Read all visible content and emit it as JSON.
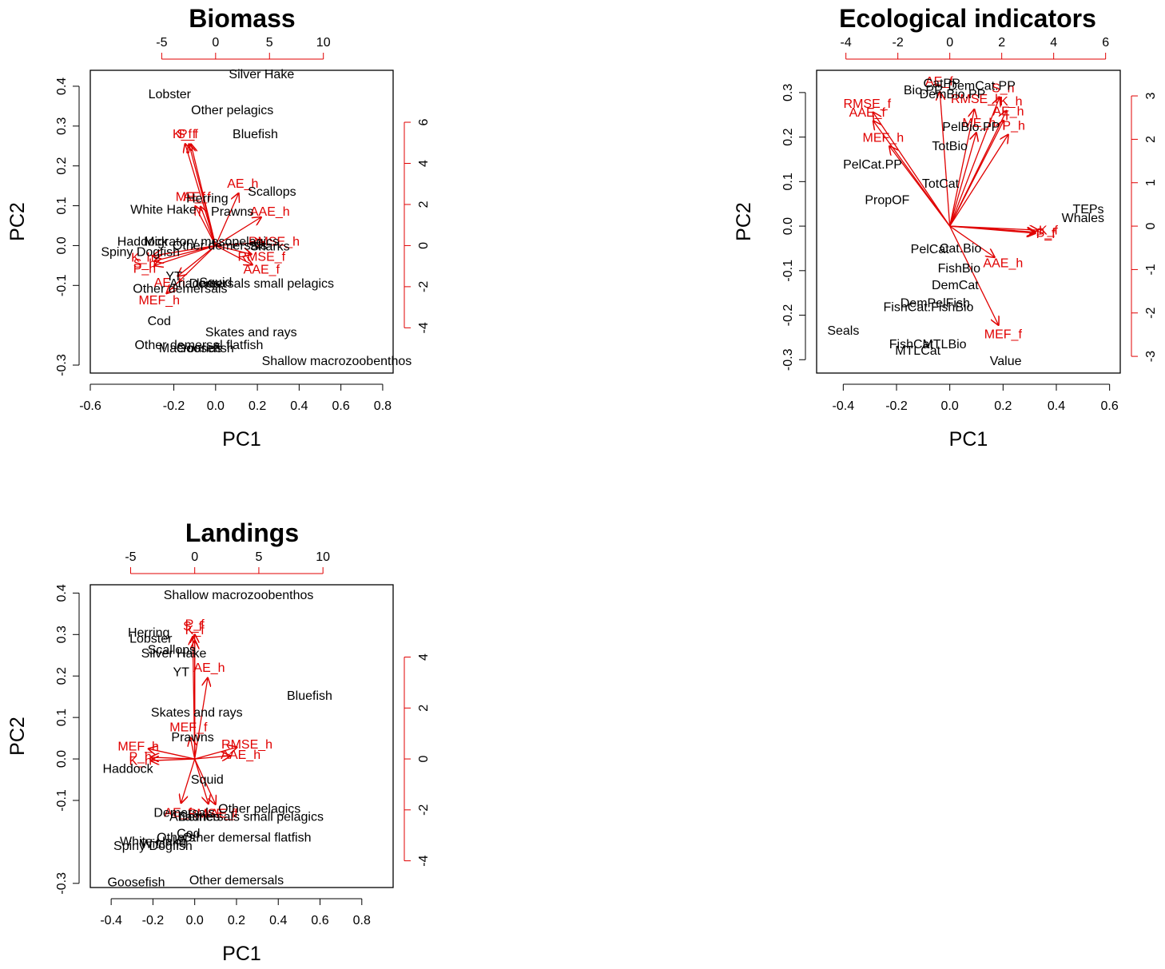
{
  "colors": {
    "points": "#000000",
    "arrows": "#e00000",
    "secondary_axis": "#e00000"
  },
  "chart_data": [
    {
      "type": "scatter",
      "subtype": "biplot",
      "title": "Biomass",
      "xlabel": "PC1",
      "ylabel": "PC2",
      "xlim": [
        -0.6,
        0.85
      ],
      "ylim": [
        -0.32,
        0.44
      ],
      "xticks": [
        "-0.6",
        "-0.2",
        "0.0",
        "0.2",
        "0.4",
        "0.6",
        "0.8"
      ],
      "yticks": [
        "-0.3",
        "-0.1",
        "0.0",
        "0.1",
        "0.2",
        "0.3",
        "0.4"
      ],
      "xticks_top": [
        "-5",
        "0",
        "5",
        "10"
      ],
      "yticks_right": [
        "-4",
        "-2",
        "0",
        "2",
        "4",
        "6"
      ],
      "loading_scale": 0.0516,
      "points": [
        {
          "label": "Silver Hake",
          "x": 0.22,
          "y": 0.43
        },
        {
          "label": "Lobster",
          "x": -0.22,
          "y": 0.38
        },
        {
          "label": "Other pelagics",
          "x": 0.08,
          "y": 0.34
        },
        {
          "label": "Bluefish",
          "x": 0.19,
          "y": 0.28
        },
        {
          "label": "Scallops",
          "x": 0.27,
          "y": 0.135
        },
        {
          "label": "Herring",
          "x": -0.04,
          "y": 0.118
        },
        {
          "label": "White Hake",
          "x": -0.25,
          "y": 0.09
        },
        {
          "label": "Prawns",
          "x": 0.08,
          "y": 0.085
        },
        {
          "label": "Haddock",
          "x": -0.35,
          "y": 0.01
        },
        {
          "label": "Migratory mesopelagics",
          "x": -0.02,
          "y": 0.01
        },
        {
          "label": "Other demersals",
          "x": 0.02,
          "y": 0.0
        },
        {
          "label": "Sharks",
          "x": 0.26,
          "y": -0.002
        },
        {
          "label": "Spiny Dogfish",
          "x": -0.36,
          "y": -0.016
        },
        {
          "label": "YT",
          "x": -0.2,
          "y": -0.077
        },
        {
          "label": "Squid",
          "x": 0.0,
          "y": -0.092
        },
        {
          "label": "Ariadnes",
          "x": -0.1,
          "y": -0.095
        },
        {
          "label": "Demersals small pelagics",
          "x": 0.22,
          "y": -0.095
        },
        {
          "label": "Other demersals",
          "x": -0.17,
          "y": -0.108
        },
        {
          "label": "Cod",
          "x": -0.27,
          "y": -0.19
        },
        {
          "label": "Skates and rays",
          "x": 0.17,
          "y": -0.218
        },
        {
          "label": "Other demersal flatfish",
          "x": -0.08,
          "y": -0.25
        },
        {
          "label": "Macrourids",
          "x": -0.12,
          "y": -0.258
        },
        {
          "label": "Goosefish",
          "x": -0.05,
          "y": -0.258
        },
        {
          "label": "Shallow macrozoobenthos",
          "x": 0.58,
          "y": -0.29
        }
      ],
      "arrows": [
        {
          "label": "K_f",
          "x": -0.16,
          "y": 0.28
        },
        {
          "label": "S_f",
          "x": -0.14,
          "y": 0.28
        },
        {
          "label": "P_f",
          "x": -0.13,
          "y": 0.28
        },
        {
          "label": "ME_f",
          "x": -0.12,
          "y": 0.122
        },
        {
          "label": "AE_f",
          "x": -0.09,
          "y": 0.122
        },
        {
          "label": "AE_h",
          "x": 0.13,
          "y": 0.155
        },
        {
          "label": "AAE_h",
          "x": 0.26,
          "y": 0.085
        },
        {
          "label": "RMSE_h",
          "x": 0.28,
          "y": 0.01
        },
        {
          "label": "RMSE_f",
          "x": 0.22,
          "y": -0.028
        },
        {
          "label": "AAE_f",
          "x": 0.22,
          "y": -0.06
        },
        {
          "label": "K_h",
          "x": -0.35,
          "y": -0.03
        },
        {
          "label": "S_h",
          "x": -0.34,
          "y": -0.045
        },
        {
          "label": "P_h",
          "x": -0.34,
          "y": -0.058
        },
        {
          "label": "AE_h",
          "x": -0.22,
          "y": -0.093
        },
        {
          "label": "MEF_h",
          "x": -0.27,
          "y": -0.138
        }
      ]
    },
    {
      "type": "scatter",
      "subtype": "biplot",
      "title": "Ecological indicators",
      "xlabel": "PC1",
      "ylabel": "PC2",
      "xlim": [
        -0.5,
        0.64
      ],
      "ylim": [
        -0.33,
        0.35
      ],
      "xticks": [
        "-0.4",
        "-0.2",
        "0.0",
        "0.2",
        "0.4",
        "0.6"
      ],
      "yticks": [
        "-0.3",
        "-0.2",
        "-0.1",
        "0.0",
        "0.1",
        "0.2",
        "0.3"
      ],
      "xticks_top": [
        "-4",
        "-2",
        "0",
        "2",
        "4",
        "6"
      ],
      "yticks_right": [
        "-3",
        "-2",
        "-1",
        "0",
        "1",
        "2",
        "3"
      ],
      "loading_scale": 0.0975,
      "points": [
        {
          "label": "CatPP",
          "x": -0.03,
          "y": 0.32
        },
        {
          "label": "DemCat.PP",
          "x": 0.12,
          "y": 0.315
        },
        {
          "label": "Bio.PP",
          "x": -0.1,
          "y": 0.305
        },
        {
          "label": "DemBio.PP",
          "x": 0.01,
          "y": 0.296
        },
        {
          "label": "PelBio.PP",
          "x": 0.08,
          "y": 0.223
        },
        {
          "label": "TotBio",
          "x": 0.0,
          "y": 0.18
        },
        {
          "label": "PelCat.PP",
          "x": -0.29,
          "y": 0.138
        },
        {
          "label": "TotCat",
          "x": -0.035,
          "y": 0.095
        },
        {
          "label": "PropOF",
          "x": -0.235,
          "y": 0.058
        },
        {
          "label": "TEPs",
          "x": 0.52,
          "y": 0.038
        },
        {
          "label": "Whales",
          "x": 0.5,
          "y": 0.018
        },
        {
          "label": "PelCat",
          "x": -0.075,
          "y": -0.052
        },
        {
          "label": "Cat.Bio",
          "x": 0.04,
          "y": -0.05
        },
        {
          "label": "FishBio",
          "x": 0.035,
          "y": -0.095
        },
        {
          "label": "DemCat",
          "x": 0.02,
          "y": -0.133
        },
        {
          "label": "DemPelFish",
          "x": -0.055,
          "y": -0.173
        },
        {
          "label": "FishCat.FishBio",
          "x": -0.08,
          "y": -0.182
        },
        {
          "label": "Seals",
          "x": -0.4,
          "y": -0.235
        },
        {
          "label": "FishCat",
          "x": -0.145,
          "y": -0.265
        },
        {
          "label": "MTLBio",
          "x": -0.02,
          "y": -0.265
        },
        {
          "label": "MTLCat",
          "x": -0.12,
          "y": -0.28
        },
        {
          "label": "Value",
          "x": 0.21,
          "y": -0.303
        }
      ],
      "arrows": [
        {
          "label": "AE_f",
          "x": -0.04,
          "y": 0.325
        },
        {
          "label": "MEF_h",
          "x": -0.25,
          "y": 0.198
        },
        {
          "label": "RMSE_f",
          "x": -0.31,
          "y": 0.275
        },
        {
          "label": "AAE_f",
          "x": -0.31,
          "y": 0.255
        },
        {
          "label": "S_h",
          "x": 0.2,
          "y": 0.31
        },
        {
          "label": "RMSE_h",
          "x": 0.1,
          "y": 0.285
        },
        {
          "label": "K_h",
          "x": 0.23,
          "y": 0.28
        },
        {
          "label": "AE_h",
          "x": 0.22,
          "y": 0.258
        },
        {
          "label": "P_h",
          "x": 0.24,
          "y": 0.225
        },
        {
          "label": "ME_h",
          "x": 0.11,
          "y": 0.232
        },
        {
          "label": "K_f",
          "x": 0.37,
          "y": -0.01
        },
        {
          "label": "S_f",
          "x": 0.36,
          "y": -0.015
        },
        {
          "label": "P_f",
          "x": 0.36,
          "y": -0.018
        },
        {
          "label": "AAE_h",
          "x": 0.2,
          "y": -0.083
        },
        {
          "label": "MEF_f",
          "x": 0.2,
          "y": -0.243
        }
      ]
    },
    {
      "type": "scatter",
      "subtype": "biplot",
      "title": "Landings",
      "xlabel": "PC1",
      "ylabel": "PC2",
      "xlim": [
        -0.5,
        0.95
      ],
      "ylim": [
        -0.31,
        0.42
      ],
      "xticks": [
        "-0.4",
        "-0.2",
        "0.0",
        "0.2",
        "0.4",
        "0.6",
        "0.8"
      ],
      "yticks": [
        "-0.3",
        "-0.1",
        "0.0",
        "0.1",
        "0.2",
        "0.3",
        "0.4"
      ],
      "xticks_top": [
        "-5",
        "0",
        "5",
        "10"
      ],
      "yticks_right": [
        "-4",
        "-2",
        "0",
        "2",
        "4"
      ],
      "loading_scale": 0.0614,
      "points": [
        {
          "label": "Shallow macrozoobenthos",
          "x": 0.21,
          "y": 0.395
        },
        {
          "label": "Herring",
          "x": -0.22,
          "y": 0.304
        },
        {
          "label": "Lobster",
          "x": -0.21,
          "y": 0.29
        },
        {
          "label": "Scallops",
          "x": -0.11,
          "y": 0.263
        },
        {
          "label": "Silver Hake",
          "x": -0.1,
          "y": 0.254
        },
        {
          "label": "YT",
          "x": -0.065,
          "y": 0.209
        },
        {
          "label": "Bluefish",
          "x": 0.55,
          "y": 0.152
        },
        {
          "label": "Skates and rays",
          "x": 0.01,
          "y": 0.112
        },
        {
          "label": "Prawns",
          "x": -0.01,
          "y": 0.052
        },
        {
          "label": "Haddock",
          "x": -0.32,
          "y": -0.024
        },
        {
          "label": "Squid",
          "x": 0.06,
          "y": -0.05
        },
        {
          "label": "Other pelagics",
          "x": 0.31,
          "y": -0.12
        },
        {
          "label": "Demersals",
          "x": -0.05,
          "y": -0.13
        },
        {
          "label": "Ariadnes",
          "x": 0.0,
          "y": -0.14
        },
        {
          "label": "Demersals small pelagics",
          "x": 0.27,
          "y": -0.14
        },
        {
          "label": "Cod",
          "x": -0.03,
          "y": -0.18
        },
        {
          "label": "Other demersal flatfish",
          "x": 0.25,
          "y": -0.19
        },
        {
          "label": "Others",
          "x": -0.09,
          "y": -0.19
        },
        {
          "label": "White Hake",
          "x": -0.2,
          "y": -0.199
        },
        {
          "label": "Witch Fl",
          "x": -0.15,
          "y": -0.205
        },
        {
          "label": "Spiny Dogfish",
          "x": -0.2,
          "y": -0.21
        },
        {
          "label": "Goosefish",
          "x": -0.28,
          "y": -0.297
        },
        {
          "label": "Other demersals",
          "x": 0.2,
          "y": -0.293
        }
      ],
      "arrows": [
        {
          "label": "S_f",
          "x": -0.01,
          "y": 0.32
        },
        {
          "label": "P_f",
          "x": 0.0,
          "y": 0.325
        },
        {
          "label": "K_f",
          "x": 0.0,
          "y": 0.31
        },
        {
          "label": "AE_h",
          "x": 0.07,
          "y": 0.22
        },
        {
          "label": "MEF_f",
          "x": -0.03,
          "y": 0.076
        },
        {
          "label": "RMSE_h",
          "x": 0.25,
          "y": 0.035
        },
        {
          "label": "AAE_h",
          "x": 0.22,
          "y": 0.01
        },
        {
          "label": "MEF_h",
          "x": -0.27,
          "y": 0.03
        },
        {
          "label": "P_h",
          "x": -0.26,
          "y": 0.005
        },
        {
          "label": "K_h",
          "x": -0.26,
          "y": -0.005
        },
        {
          "label": "AE_f",
          "x": -0.08,
          "y": -0.13
        },
        {
          "label": "RMSE_f",
          "x": 0.08,
          "y": -0.132
        },
        {
          "label": "AAE_f",
          "x": 0.12,
          "y": -0.132
        }
      ]
    }
  ]
}
